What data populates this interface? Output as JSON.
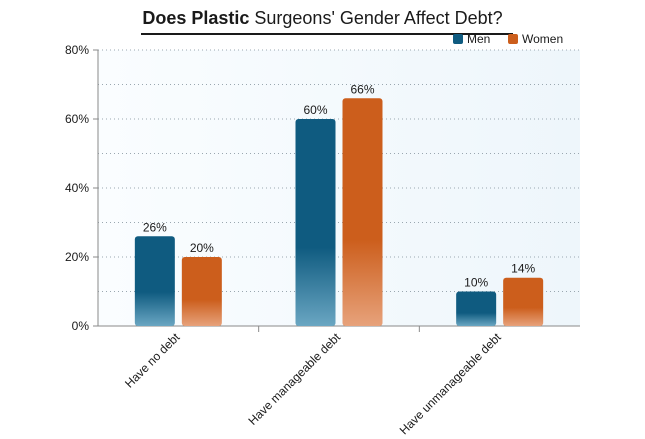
{
  "chart_data": {
    "type": "bar",
    "title_bold": "Does Plastic",
    "title_rest": " Surgeons' Gender Affect Debt?",
    "categories": [
      "Have no debt",
      "Have manageable debt",
      "Have unmanageable debt"
    ],
    "series": [
      {
        "name": "Men",
        "values": [
          26,
          60,
          10
        ],
        "color": "#0f5b80"
      },
      {
        "name": "Women",
        "values": [
          20,
          66,
          14
        ],
        "color": "#cc5e1c"
      }
    ],
    "value_labels": [
      [
        "26%",
        "60%",
        "10%"
      ],
      [
        "20%",
        "66%",
        "14%"
      ]
    ],
    "yticks": [
      0,
      20,
      40,
      60,
      80
    ],
    "ytick_labels": [
      "0%",
      "20%",
      "40%",
      "60%",
      "80%"
    ],
    "ylim": [
      0,
      80
    ],
    "grid": true,
    "legend_position": "top-right",
    "plot_background": "#eef6fb"
  }
}
